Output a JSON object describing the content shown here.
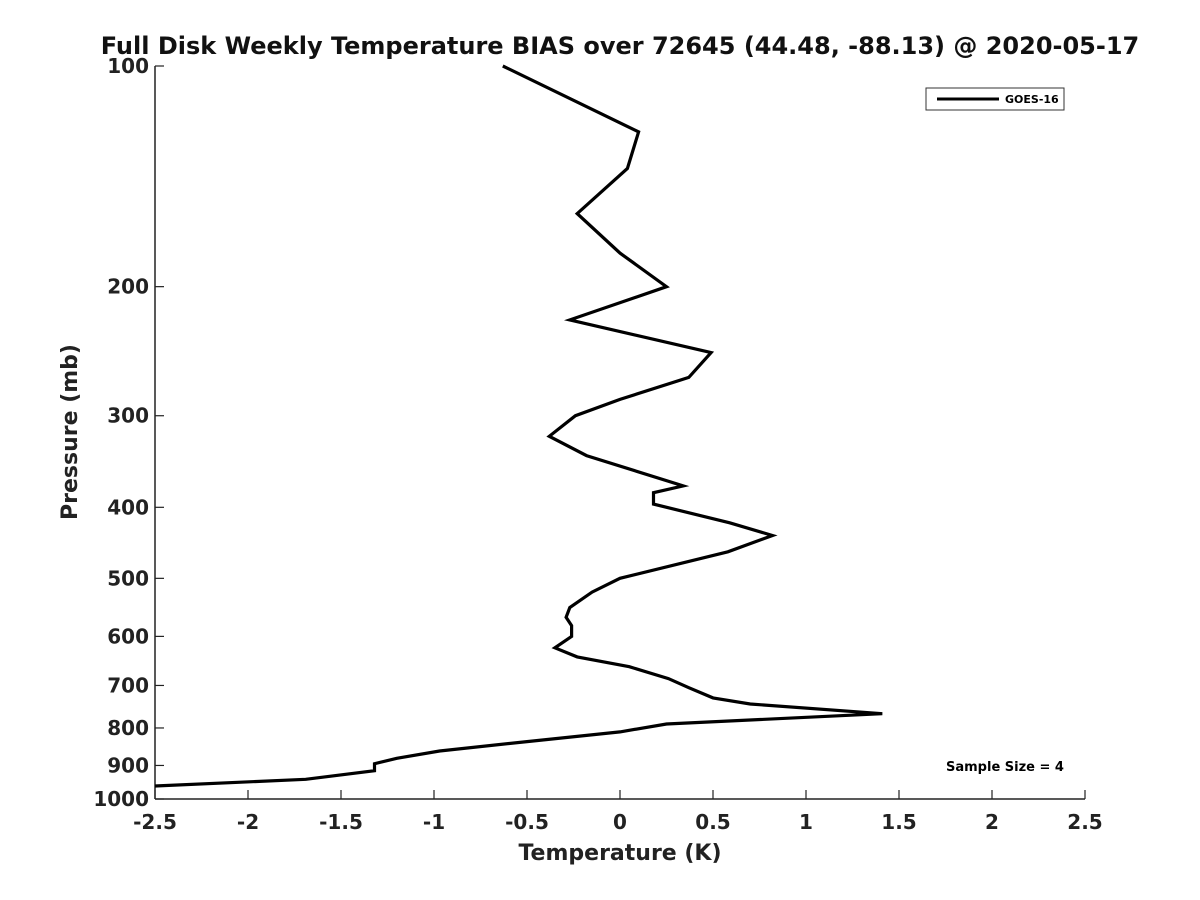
{
  "chart_data": {
    "type": "line",
    "title": "Full Disk Weekly Temperature BIAS over 72645 (44.48, -88.13) @ 2020-05-17",
    "xlabel": "Temperature (K)",
    "ylabel": "Pressure (mb)",
    "xlim": [
      -2.5,
      2.5
    ],
    "ylim": [
      100,
      1000
    ],
    "y_scale": "log",
    "y_reversed": true,
    "x_ticks": [
      "-2.5",
      "-2",
      "-1.5",
      "-1",
      "-0.5",
      "0",
      "0.5",
      "1",
      "1.5",
      "2",
      "2.5"
    ],
    "y_ticks": [
      "100",
      "200",
      "300",
      "400",
      "500",
      "600",
      "700",
      "800",
      "900",
      "1000"
    ],
    "grid": false,
    "legend_position": "top-right",
    "series": [
      {
        "name": "GOES-16",
        "color": "#000000",
        "x": [
          -0.63,
          0.1,
          0.04,
          -0.23,
          0.0,
          0.25,
          -0.27,
          0.49,
          0.37,
          0.0,
          -0.24,
          -0.38,
          -0.18,
          0.34,
          0.18,
          0.18,
          0.59,
          0.82,
          0.58,
          0.0,
          -0.15,
          -0.27,
          -0.29,
          -0.26,
          -0.26,
          -0.35,
          -0.23,
          0.05,
          0.26,
          0.37,
          0.5,
          0.7,
          1.41,
          0.25,
          0.0,
          -0.5,
          -0.97,
          -1.2,
          -1.32,
          -1.32,
          -1.69,
          -2.5
        ],
        "y": [
          100,
          123,
          138,
          159,
          180,
          200,
          222,
          246,
          266,
          285,
          300,
          320,
          340,
          374,
          382,
          396,
          420,
          437,
          460,
          500,
          522,
          548,
          565,
          580,
          600,
          622,
          640,
          660,
          685,
          705,
          728,
          742,
          765,
          790,
          810,
          835,
          860,
          880,
          895,
          915,
          940,
          960
        ]
      }
    ],
    "annotations": [
      "Sample Size = 4"
    ]
  }
}
